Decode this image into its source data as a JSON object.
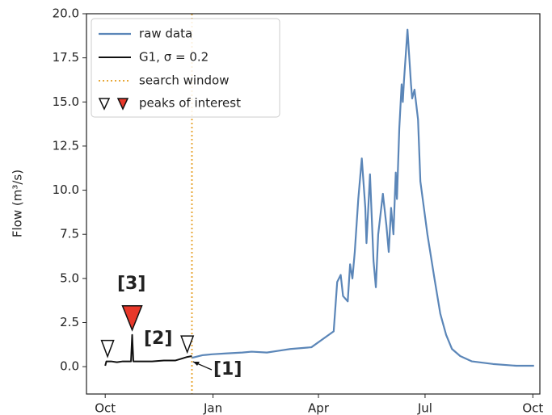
{
  "chart_data": {
    "type": "line",
    "y_label": "Flow (m³/s)",
    "xlim": [
      -16,
      371
    ],
    "ylim": [
      -1.55,
      20
    ],
    "xticks": [
      {
        "value": 0,
        "label": "Oct"
      },
      {
        "value": 92,
        "label": "Jan"
      },
      {
        "value": 182,
        "label": "Apr"
      },
      {
        "value": 273,
        "label": "Jul"
      },
      {
        "value": 365,
        "label": "Oct"
      }
    ],
    "yticks": [
      {
        "value": 0,
        "label": "0.0"
      },
      {
        "value": 2.5,
        "label": "2.5"
      },
      {
        "value": 5,
        "label": "5.0"
      },
      {
        "value": 7.5,
        "label": "7.5"
      },
      {
        "value": 10,
        "label": "10.0"
      },
      {
        "value": 12.5,
        "label": "12.5"
      },
      {
        "value": 15,
        "label": "15.0"
      },
      {
        "value": 17.5,
        "label": "17.5"
      },
      {
        "value": 20,
        "label": "20.0"
      }
    ],
    "series": [
      {
        "name": "raw data",
        "color": "#5b86b8",
        "x": [
          74,
          83,
          91,
          103,
          117,
          125,
          138,
          148,
          158,
          176,
          195,
          198,
          201,
          203,
          207,
          209,
          211,
          213,
          216,
          219,
          222,
          223,
          226,
          229,
          231,
          233,
          237,
          240,
          242,
          244,
          246,
          248,
          249,
          251,
          253,
          254,
          255,
          258,
          261,
          262,
          264,
          267,
          269,
          271,
          275,
          281,
          286,
          291,
          296,
          303,
          313,
          331,
          351,
          366
        ],
        "values": [
          0.5,
          0.65,
          0.7,
          0.75,
          0.8,
          0.85,
          0.8,
          0.9,
          1.0,
          1.1,
          2.0,
          4.8,
          5.2,
          4.0,
          3.7,
          5.8,
          5.0,
          6.5,
          9.5,
          11.8,
          9.0,
          7.0,
          10.9,
          6.0,
          4.5,
          7.5,
          9.8,
          8.0,
          6.5,
          9.0,
          7.5,
          11.0,
          9.5,
          13.5,
          16.0,
          15.0,
          16.2,
          19.1,
          16.0,
          15.2,
          15.7,
          14.0,
          10.5,
          9.5,
          7.5,
          5.0,
          3.0,
          1.8,
          1.0,
          0.6,
          0.3,
          0.15,
          0.05,
          0.05
        ]
      },
      {
        "name": "G1, σ = 0.2",
        "color": "#111111",
        "x": [
          0,
          1,
          5,
          10,
          15,
          20,
          22,
          23,
          24,
          30,
          40,
          50,
          60,
          65,
          70,
          74
        ],
        "values": [
          0.05,
          0.3,
          0.3,
          0.25,
          0.3,
          0.3,
          0.3,
          1.8,
          0.3,
          0.3,
          0.3,
          0.35,
          0.35,
          0.45,
          0.55,
          0.6
        ]
      }
    ],
    "search_window": {
      "name": "search window",
      "x": 74,
      "color": "#e8a838"
    },
    "peaks": {
      "name": "peaks of interest",
      "x": [
        2,
        23,
        70
      ],
      "values": [
        0.3,
        1.8,
        0.55
      ],
      "colors": [
        "#ffffff",
        "#e8382a",
        "#ffffff"
      ]
    },
    "annotations": [
      "[1]",
      "[2]",
      "[3]"
    ]
  }
}
